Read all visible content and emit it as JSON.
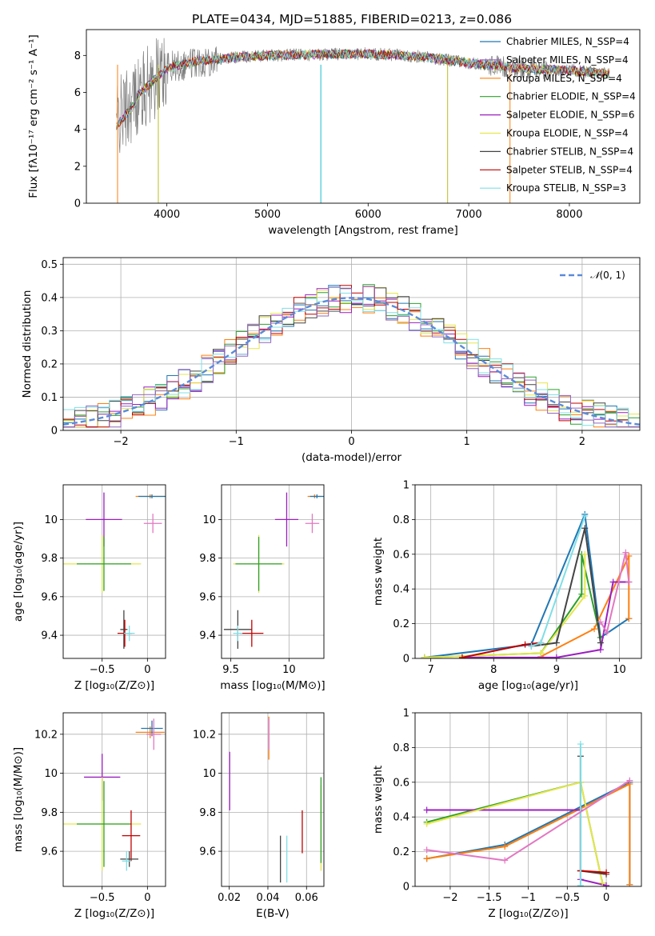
{
  "figure_title": "PLATE=0434, MJD=51885, FIBERID=0213, z=0.086",
  "chart_data": [
    {
      "id": "spectrum",
      "type": "line",
      "xlabel": "wavelength [Angstrom, rest frame]",
      "ylabel": "Flux [fλ10⁻¹⁷ erg cm⁻² s⁻¹ A⁻¹]",
      "xlim": [
        3200,
        8700
      ],
      "ylim": [
        0,
        9.4
      ],
      "xticks": [
        4000,
        5000,
        6000,
        7000,
        8000
      ],
      "yticks": [
        0,
        2,
        4,
        6,
        8
      ],
      "legend_position": "top-right",
      "data_series": {
        "name": "data",
        "color": "#808080"
      },
      "continuum": {
        "x": [
          3500,
          3700,
          4000,
          4300,
          4700,
          5000,
          5500,
          6000,
          6500,
          7000,
          7500,
          8000,
          8400
        ],
        "y": [
          4.5,
          5.8,
          7.3,
          7.7,
          7.9,
          8.0,
          8.05,
          8.1,
          7.95,
          7.6,
          7.3,
          7.2,
          7.0
        ]
      },
      "vertical_spikes": [
        {
          "x": 3510,
          "color": "#ff7f0e"
        },
        {
          "x": 3915,
          "color": "#bcbd22"
        },
        {
          "x": 5530,
          "color": "#17becf"
        },
        {
          "x": 6790,
          "color": "#bcbd22"
        },
        {
          "x": 7410,
          "color": "#ff7f0e"
        }
      ],
      "series": [
        {
          "name": "Chabrier MILES, N_SSP=4",
          "color": "#1f77b4"
        },
        {
          "name": "Salpeter MILES, N_SSP=4",
          "color": "#9467bd"
        },
        {
          "name": "Kroupa MILES, N_SSP=4",
          "color": "#ff7f0e"
        },
        {
          "name": "Chabrier ELODIE, N_SSP=4",
          "color": "#2ca02c"
        },
        {
          "name": "Salpeter ELODIE, N_SSP=6",
          "color": "#9a1fbf"
        },
        {
          "name": "Kroupa ELODIE, N_SSP=4",
          "color": "#e6e64c"
        },
        {
          "name": "Chabrier STELIB, N_SSP=4",
          "color": "#444444"
        },
        {
          "name": "Salpeter STELIB, N_SSP=4",
          "color": "#c00000"
        },
        {
          "name": "Kroupa STELIB, N_SSP=3",
          "color": "#7fdfe6"
        }
      ]
    },
    {
      "id": "residuals",
      "type": "line",
      "xlabel": "(data-model)/error",
      "ylabel": "Normed distribution",
      "xlim": [
        -2.5,
        2.5
      ],
      "ylim": [
        0,
        0.52
      ],
      "xticks": [
        -2,
        -1,
        0,
        1,
        2
      ],
      "yticks": [
        0.0,
        0.1,
        0.2,
        0.3,
        0.4,
        0.5
      ],
      "grid": true,
      "legend_position": "top-right",
      "reference_curve": {
        "name": "N(0,1)",
        "label_base": "𝒩",
        "label_args": "(0, 1)",
        "mean": 0,
        "sigma": 1,
        "color": "#5b8bd9"
      },
      "histogram_colors": [
        "#1f77b4",
        "#ff7f0e",
        "#2ca02c",
        "#9a1fbf",
        "#e6e64c",
        "#444444",
        "#c00000",
        "#7fdfe6",
        "#9467bd"
      ],
      "bin_width": 0.1
    },
    {
      "id": "age_vs_Z",
      "type": "scatter",
      "xlabel": "Z [log₁₀(Z/Z⊙)]",
      "ylabel": "age  [log₁₀(age/yr)]",
      "xlim": [
        -0.93,
        0.2
      ],
      "ylim": [
        9.28,
        10.18
      ],
      "xticks": [
        -0.5,
        0.0
      ],
      "yticks": [
        9.4,
        9.6,
        9.8,
        10.0
      ],
      "grid": true,
      "points": [
        {
          "x": 0.03,
          "y": 10.12,
          "xerr": 0.16,
          "yerr": 0.01,
          "color": "#ff7f0e"
        },
        {
          "x": 0.05,
          "y": 10.12,
          "xerr": 0.15,
          "yerr": 0.01,
          "color": "#1f77b4"
        },
        {
          "x": 0.06,
          "y": 9.98,
          "xerr": 0.1,
          "yerr": 0.05,
          "color": "#e377c2"
        },
        {
          "x": -0.48,
          "y": 10.0,
          "xerr": 0.2,
          "yerr": 0.14,
          "color": "#9a1fbf"
        },
        {
          "x": -0.5,
          "y": 9.77,
          "xerr": 0.43,
          "yerr": 0.15,
          "color": "#e6e64c"
        },
        {
          "x": -0.48,
          "y": 9.77,
          "xerr": 0.3,
          "yerr": 0.14,
          "color": "#2ca02c"
        },
        {
          "x": -0.26,
          "y": 9.43,
          "xerr": 0.04,
          "yerr": 0.1,
          "color": "#444444"
        },
        {
          "x": -0.25,
          "y": 9.41,
          "xerr": 0.08,
          "yerr": 0.07,
          "color": "#c00000"
        },
        {
          "x": -0.2,
          "y": 9.41,
          "xerr": 0.06,
          "yerr": 0.04,
          "color": "#7fdfe6"
        }
      ]
    },
    {
      "id": "age_vs_mass",
      "type": "scatter",
      "xlabel": "mass [log₁₀(M/M⊙)]",
      "xlim": [
        9.42,
        10.3
      ],
      "ylim": [
        9.28,
        10.18
      ],
      "xticks": [
        9.5,
        10.0
      ],
      "yticks": [
        9.4,
        9.6,
        9.8,
        10.0
      ],
      "grid": true,
      "points": [
        {
          "x": 10.22,
          "y": 10.12,
          "xerr": 0.06,
          "yerr": 0.01,
          "color": "#ff7f0e"
        },
        {
          "x": 10.24,
          "y": 10.12,
          "xerr": 0.06,
          "yerr": 0.01,
          "color": "#1f77b4"
        },
        {
          "x": 10.2,
          "y": 9.98,
          "xerr": 0.06,
          "yerr": 0.05,
          "color": "#e377c2"
        },
        {
          "x": 9.98,
          "y": 10.0,
          "xerr": 0.1,
          "yerr": 0.14,
          "color": "#9a1fbf"
        },
        {
          "x": 9.74,
          "y": 9.77,
          "xerr": 0.22,
          "yerr": 0.15,
          "color": "#e6e64c"
        },
        {
          "x": 9.74,
          "y": 9.77,
          "xerr": 0.2,
          "yerr": 0.14,
          "color": "#2ca02c"
        },
        {
          "x": 9.56,
          "y": 9.43,
          "xerr": 0.12,
          "yerr": 0.1,
          "color": "#444444"
        },
        {
          "x": 9.68,
          "y": 9.41,
          "xerr": 0.1,
          "yerr": 0.07,
          "color": "#c00000"
        },
        {
          "x": 9.56,
          "y": 9.41,
          "xerr": 0.04,
          "yerr": 0.04,
          "color": "#7fdfe6"
        }
      ]
    },
    {
      "id": "mass_weight_vs_age",
      "type": "line",
      "xlabel": "age  [log₁₀(age/yr)]",
      "ylabel": "mass weight",
      "xlim": [
        6.75,
        10.35
      ],
      "ylim": [
        0,
        1.0
      ],
      "xticks": [
        7,
        8,
        9,
        10
      ],
      "yticks": [
        0.0,
        0.2,
        0.4,
        0.6,
        0.8,
        1.0
      ],
      "grid": true,
      "series": [
        {
          "color": "#1f77b4",
          "x": [
            6.9,
            8.6,
            9.45,
            9.7,
            10.15
          ],
          "y": [
            0.005,
            0.08,
            0.83,
            0.12,
            0.23
          ]
        },
        {
          "color": "#ff7f0e",
          "x": [
            8.75,
            9.6,
            10.15,
            10.15
          ],
          "y": [
            0.01,
            0.17,
            0.59,
            0.23
          ]
        },
        {
          "color": "#2ca02c",
          "x": [
            6.9,
            8.75,
            9.4,
            9.4,
            9.7
          ],
          "y": [
            0.005,
            0.03,
            0.37,
            0.6,
            0.12
          ]
        },
        {
          "color": "#9a1fbf",
          "x": [
            7.5,
            9.0,
            9.7,
            9.9,
            10.15
          ],
          "y": [
            0.005,
            0.005,
            0.05,
            0.44,
            0.44
          ]
        },
        {
          "color": "#e6e64c",
          "x": [
            6.9,
            8.75,
            9.45,
            9.45
          ],
          "y": [
            0.005,
            0.03,
            0.36,
            0.6
          ]
        },
        {
          "color": "#444444",
          "x": [
            8.6,
            9.0,
            9.45,
            9.7
          ],
          "y": [
            0.07,
            0.09,
            0.75,
            0.09
          ]
        },
        {
          "color": "#c00000",
          "x": [
            7.5,
            8.5,
            8.75
          ],
          "y": [
            0.005,
            0.08,
            0.09
          ]
        },
        {
          "color": "#7fdfe6",
          "x": [
            8.6,
            8.75,
            9.45
          ],
          "y": [
            0.07,
            0.09,
            0.82
          ]
        },
        {
          "color": "#e377c2",
          "x": [
            9.7,
            9.8,
            10.1,
            10.15
          ],
          "y": [
            0.21,
            0.15,
            0.61,
            0.44
          ]
        }
      ]
    },
    {
      "id": "mass_vs_Z",
      "type": "scatter",
      "xlabel": "Z [log₁₀(Z/Z⊙)]",
      "ylabel": "mass [log₁₀(M/M⊙)]",
      "xlim": [
        -0.93,
        0.2
      ],
      "ylim": [
        9.42,
        10.31
      ],
      "xticks": [
        -0.5,
        0.0
      ],
      "yticks": [
        9.6,
        9.8,
        10.0,
        10.2
      ],
      "grid": true,
      "points": [
        {
          "x": 0.03,
          "y": 10.21,
          "xerr": 0.16,
          "yerr": 0.03,
          "color": "#ff7f0e"
        },
        {
          "x": 0.05,
          "y": 10.23,
          "xerr": 0.12,
          "yerr": 0.04,
          "color": "#1f77b4"
        },
        {
          "x": 0.07,
          "y": 10.2,
          "xerr": 0.08,
          "yerr": 0.08,
          "color": "#e377c2"
        },
        {
          "x": -0.5,
          "y": 9.98,
          "xerr": 0.2,
          "yerr": 0.12,
          "color": "#9a1fbf"
        },
        {
          "x": -0.5,
          "y": 9.74,
          "xerr": 0.43,
          "yerr": 0.24,
          "color": "#e6e64c"
        },
        {
          "x": -0.48,
          "y": 9.74,
          "xerr": 0.3,
          "yerr": 0.22,
          "color": "#2ca02c"
        },
        {
          "x": -0.18,
          "y": 9.68,
          "xerr": 0.1,
          "yerr": 0.13,
          "color": "#c00000"
        },
        {
          "x": -0.2,
          "y": 9.56,
          "xerr": 0.1,
          "yerr": 0.04,
          "color": "#444444"
        },
        {
          "x": -0.23,
          "y": 9.55,
          "xerr": 0.05,
          "yerr": 0.05,
          "color": "#7fdfe6"
        }
      ]
    },
    {
      "id": "mass_vs_ebv",
      "type": "scatter",
      "xlabel": "E(B-V)",
      "xlim": [
        0.016,
        0.069
      ],
      "ylim": [
        9.42,
        10.31
      ],
      "xticks": [
        0.02,
        0.04,
        0.06
      ],
      "yticks": [
        9.6,
        9.8,
        10.0,
        10.2
      ],
      "grid": true,
      "points": [
        {
          "x": 0.0405,
          "y": 10.18,
          "yerr": 0.11,
          "color": "#ff7f0e"
        },
        {
          "x": 0.0405,
          "y": 10.2,
          "yerr": 0.08,
          "color": "#e377c2"
        },
        {
          "x": 0.0202,
          "y": 9.96,
          "yerr": 0.15,
          "color": "#9a1fbf"
        },
        {
          "x": 0.0675,
          "y": 9.72,
          "yerr": 0.22,
          "color": "#e6e64c"
        },
        {
          "x": 0.0675,
          "y": 9.76,
          "yerr": 0.22,
          "color": "#2ca02c"
        },
        {
          "x": 0.0578,
          "y": 9.7,
          "yerr": 0.11,
          "color": "#c00000"
        },
        {
          "x": 0.0465,
          "y": 9.56,
          "yerr": 0.12,
          "color": "#444444"
        },
        {
          "x": 0.0498,
          "y": 9.56,
          "yerr": 0.12,
          "color": "#7fdfe6"
        }
      ]
    },
    {
      "id": "mass_weight_vs_Z",
      "type": "line",
      "xlabel": "Z [log₁₀(Z/Z⊙)]",
      "ylabel": "mass weight",
      "xlim": [
        -2.45,
        0.45
      ],
      "ylim": [
        0,
        1.0
      ],
      "xticks": [
        -2.0,
        -1.5,
        -1.0,
        -0.5,
        0.0
      ],
      "yticks": [
        0.0,
        0.2,
        0.4,
        0.6,
        0.8,
        1.0
      ],
      "grid": true,
      "series": [
        {
          "color": "#1f77b4",
          "x": [
            -2.3,
            -1.3,
            0.3,
            0.3
          ],
          "y": [
            0.16,
            0.24,
            0.6,
            0.01
          ]
        },
        {
          "color": "#ff7f0e",
          "x": [
            -2.3,
            -1.3,
            0.3,
            0.3
          ],
          "y": [
            0.16,
            0.23,
            0.59,
            0.01
          ]
        },
        {
          "color": "#2ca02c",
          "x": [
            -2.3,
            -0.33,
            -0.05
          ],
          "y": [
            0.37,
            0.6,
            0.02
          ]
        },
        {
          "color": "#9a1fbf",
          "x": [
            -2.3,
            -0.33,
            -0.33,
            0.0
          ],
          "y": [
            0.44,
            0.44,
            0.04,
            0.005
          ]
        },
        {
          "color": "#e6e64c",
          "x": [
            -2.3,
            -0.33,
            -0.05
          ],
          "y": [
            0.36,
            0.6,
            0.02
          ]
        },
        {
          "color": "#444444",
          "x": [
            -0.33,
            -0.33,
            -0.33,
            0.0
          ],
          "y": [
            0.75,
            0.09,
            0.09,
            0.07
          ]
        },
        {
          "color": "#c00000",
          "x": [
            -0.33,
            0.0
          ],
          "y": [
            0.09,
            0.08
          ]
        },
        {
          "color": "#7fdfe6",
          "x": [
            -0.33,
            -0.33
          ],
          "y": [
            0.82,
            0.005
          ]
        },
        {
          "color": "#e377c2",
          "x": [
            -2.3,
            -1.3,
            0.3
          ],
          "y": [
            0.21,
            0.15,
            0.61
          ]
        }
      ]
    }
  ]
}
